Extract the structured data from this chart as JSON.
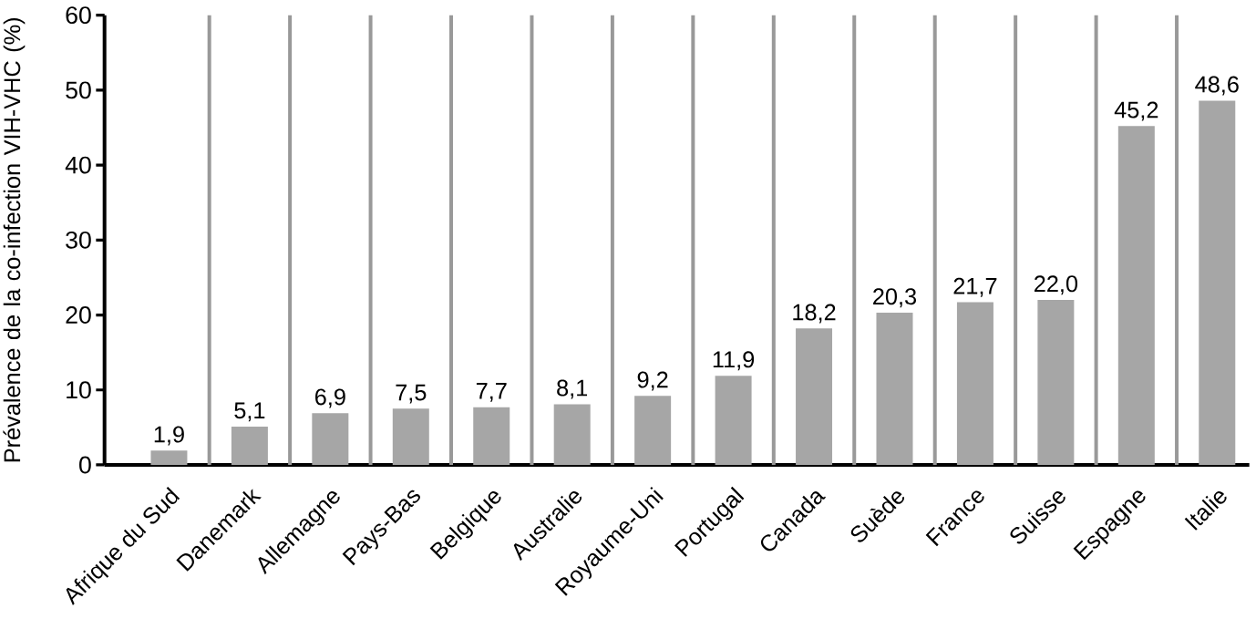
{
  "chart_data": {
    "type": "bar",
    "ylabel": "Prévalence de la co-infection VIH-VHC (%)",
    "categories": [
      "Afrique du Sud",
      "Danemark",
      "Allemagne",
      "Pays-Bas",
      "Belgique",
      "Australie",
      "Royaume-Uni",
      "Portugal",
      "Canada",
      "Suède",
      "France",
      "Suisse",
      "Espagne",
      "Italie"
    ],
    "values": [
      1.9,
      5.1,
      6.9,
      7.5,
      7.7,
      8.1,
      9.2,
      11.9,
      18.2,
      20.3,
      21.7,
      22.0,
      45.2,
      48.6
    ],
    "value_labels": [
      "1,9",
      "5,1",
      "6,9",
      "7,5",
      "7,7",
      "8,1",
      "9,2",
      "11,9",
      "18,2",
      "20,3",
      "21,7",
      "22,0",
      "45,2",
      "48,6"
    ],
    "color": "#a6a6a6",
    "ylim": [
      0,
      60
    ],
    "yticks": [
      0,
      10,
      20,
      30,
      40,
      50,
      60
    ],
    "grid": "x"
  }
}
